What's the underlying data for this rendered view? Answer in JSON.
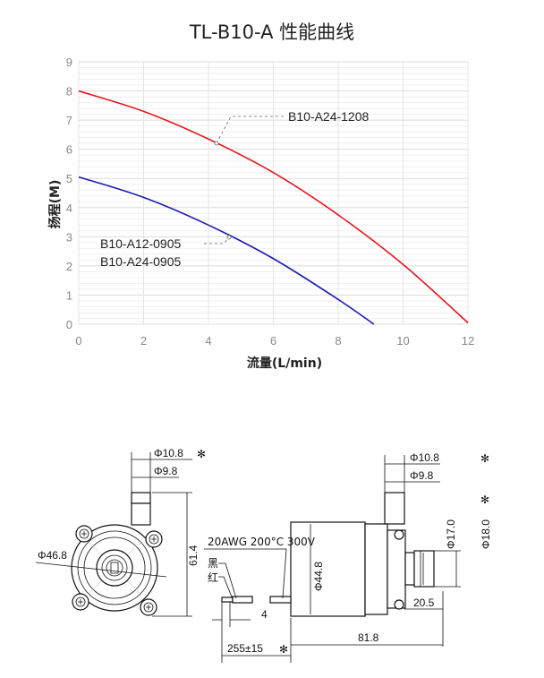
{
  "title": "TL-B10-A 性能曲线",
  "chart_data": {
    "type": "line",
    "title": "TL-B10-A 性能曲线",
    "xlabel": "流量(L/min)",
    "ylabel": "扬程(M)",
    "xlim": [
      0,
      12
    ],
    "ylim": [
      0,
      9
    ],
    "xticks": [
      "0",
      "2",
      "4",
      "6",
      "8",
      "10",
      "12"
    ],
    "yticks": [
      "0",
      "1",
      "2",
      "3",
      "4",
      "5",
      "6",
      "7",
      "8",
      "9"
    ],
    "grid": true,
    "series": [
      {
        "name": "B10-A24-1208",
        "color": "#e8141c",
        "x": [
          0,
          2,
          4,
          6,
          8,
          10,
          12
        ],
        "y": [
          8.0,
          7.3,
          6.35,
          5.2,
          3.75,
          2.05,
          0.05
        ]
      },
      {
        "name": "B10-A12-0905 / B10-A24-0905",
        "color": "#1c1ab4",
        "x": [
          0,
          2,
          4,
          6,
          8,
          9.1
        ],
        "y": [
          5.05,
          4.35,
          3.4,
          2.25,
          0.85,
          0.0
        ]
      }
    ],
    "annotations": [
      {
        "text": "B10-A24-1208",
        "x": 4.25,
        "y": 6.2
      },
      {
        "text": "B10-A12-0905",
        "x": 4.6,
        "y": 3.0
      },
      {
        "text": "B10-A24-0905",
        "x": 4.6,
        "y": 3.0
      }
    ]
  },
  "drawing": {
    "d_inlet_outer_left": "Φ10.8",
    "d_inlet_inner_left": "Φ9.8",
    "star": "✻",
    "d_body": "Φ46.8",
    "height": "61.4",
    "wire_spec": "20AWG 200°C 300V",
    "wire_black": "黑",
    "wire_red": "红",
    "strip_len": "4",
    "wire_len": "255±15",
    "d_motor": "Φ44.8",
    "d_inlet_outer_right": "Φ10.8",
    "d_inlet_inner_right": "Φ9.8",
    "d_outlet_17": "Φ17.0",
    "d_outlet_18": "Φ18.0",
    "outlet_len": "20.5",
    "total_len": "81.8"
  }
}
